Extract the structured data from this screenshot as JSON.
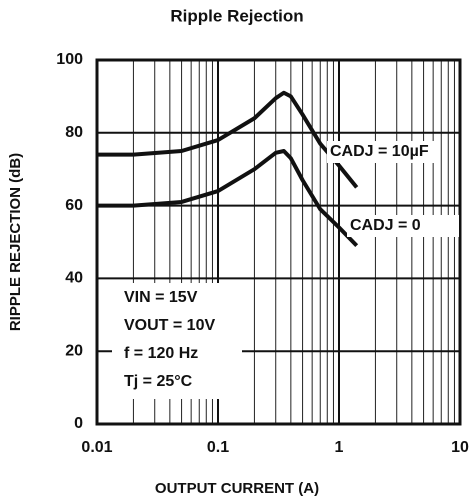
{
  "chart_data": {
    "type": "line",
    "title": "Ripple Rejection",
    "x_label": "OUTPUT CURRENT (A)",
    "y_label": "RIPPLE REJECTION (dB)",
    "x": [
      0.01,
      0.02,
      0.05,
      0.1,
      0.2,
      0.3,
      0.35,
      0.4,
      0.5,
      0.7,
      1,
      1.4
    ],
    "series": [
      {
        "name": "CADJ = 10µF",
        "color": "#111111",
        "values": [
          74,
          74,
          75,
          78,
          84,
          89.5,
          91,
          90,
          85,
          77,
          71,
          65
        ]
      },
      {
        "name": "CADJ = 0",
        "color": "#111111",
        "values": [
          60,
          60,
          61,
          64,
          70,
          74.5,
          75,
          73,
          67,
          59,
          54,
          49
        ]
      }
    ],
    "annotations": [
      "VIN = 15V",
      "VOUT = 10V",
      "f = 120 Hz",
      "Tj = 25°C"
    ],
    "xlim": [
      0.01,
      10
    ],
    "xticks": [
      0.01,
      0.1,
      1,
      10
    ],
    "xscale": "log",
    "ylim": [
      0,
      100
    ],
    "yticks": [
      0,
      20,
      40,
      60,
      80,
      100
    ],
    "grid": true
  }
}
